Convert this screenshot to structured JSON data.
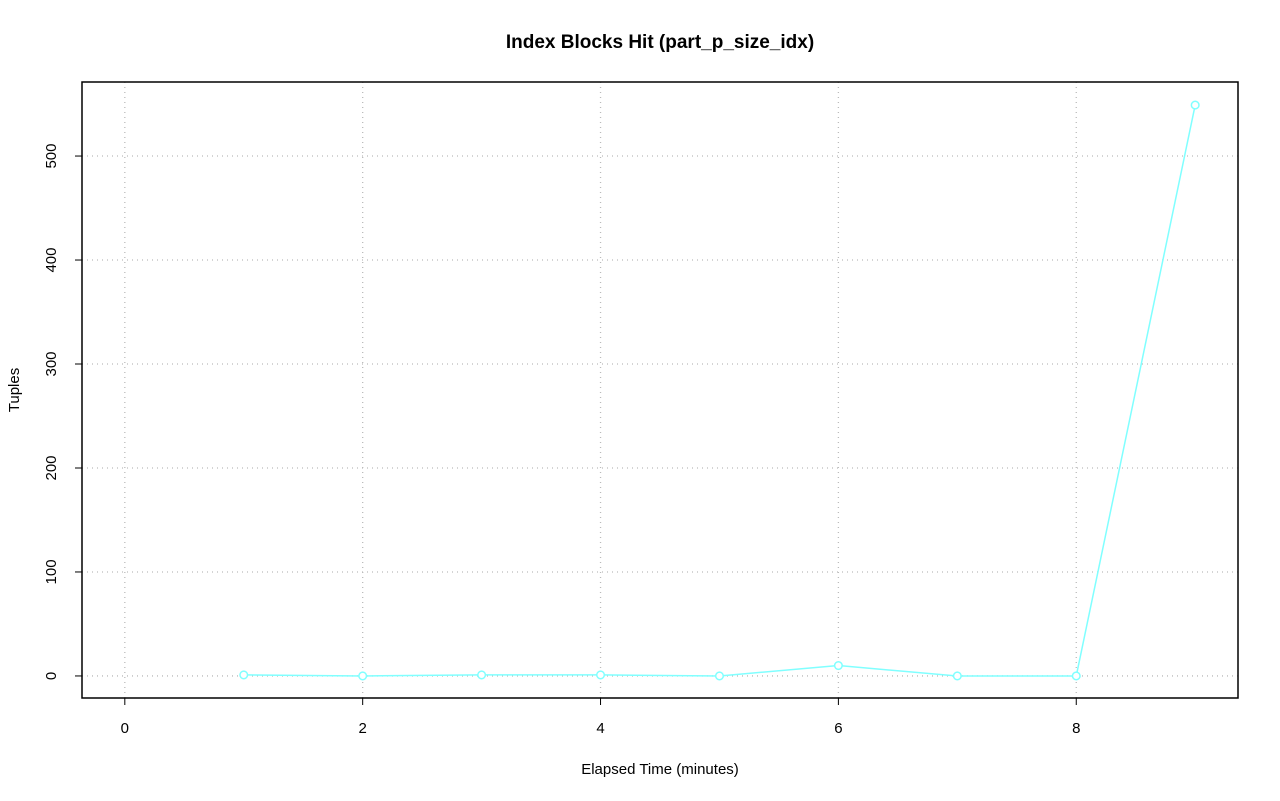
{
  "chart_data": {
    "type": "line",
    "title": "Index Blocks Hit (part_p_size_idx)",
    "x_label": "Elapsed Time (minutes)",
    "y_label": "Tuples",
    "x": [
      1,
      2,
      3,
      4,
      5,
      6,
      7,
      8,
      9
    ],
    "series": [
      {
        "name": "part_p_size_idx",
        "color": "#80ffff",
        "values": [
          1,
          0,
          1,
          1,
          0,
          10,
          0,
          0,
          549
        ]
      }
    ],
    "xlim": [
      -0.36,
      9.36
    ],
    "xticks": [
      0,
      2,
      4,
      6,
      8
    ],
    "ylim": [
      -21.2,
      571.2
    ],
    "yticks": [
      0,
      100,
      200,
      300,
      400,
      500
    ],
    "grid": true
  }
}
